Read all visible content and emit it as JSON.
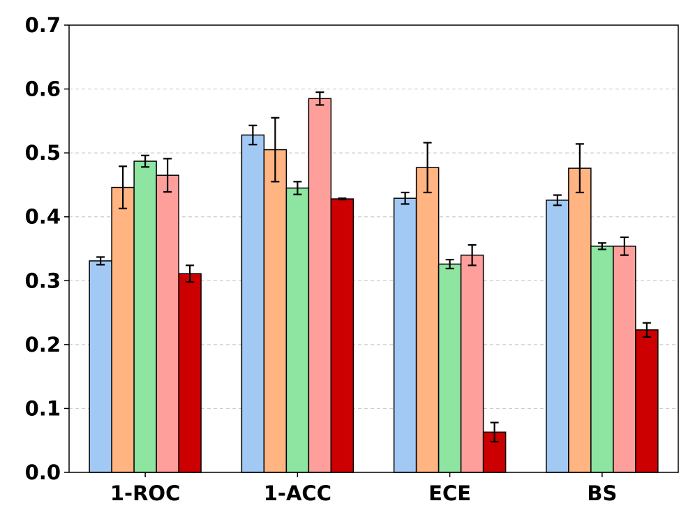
{
  "chart_data": {
    "type": "bar",
    "title": "",
    "xlabel": "",
    "ylabel": "",
    "categories": [
      "1-ROC",
      "1-ACC",
      "ECE",
      "BS"
    ],
    "ylim": [
      0.0,
      0.7
    ],
    "yticks": [
      0.0,
      0.1,
      0.2,
      0.3,
      0.4,
      0.5,
      0.6,
      0.7
    ],
    "ytick_labels": [
      "0.0",
      "0.1",
      "0.2",
      "0.3",
      "0.4",
      "0.5",
      "0.6",
      "0.7"
    ],
    "grid": "y-dashed",
    "legend": "none",
    "series": [
      {
        "name": "series-1",
        "color": "#a1c9f4",
        "values": [
          0.331,
          0.528,
          0.429,
          0.426
        ],
        "errors": [
          0.006,
          0.015,
          0.009,
          0.008
        ]
      },
      {
        "name": "series-2",
        "color": "#ffb482",
        "values": [
          0.446,
          0.505,
          0.477,
          0.476
        ],
        "errors": [
          0.033,
          0.05,
          0.039,
          0.038
        ]
      },
      {
        "name": "series-3",
        "color": "#8de5a1",
        "values": [
          0.487,
          0.445,
          0.326,
          0.354
        ],
        "errors": [
          0.009,
          0.01,
          0.007,
          0.005
        ]
      },
      {
        "name": "series-4",
        "color": "#ff9f9b",
        "values": [
          0.465,
          0.585,
          0.34,
          0.354
        ],
        "errors": [
          0.026,
          0.01,
          0.016,
          0.014
        ]
      },
      {
        "name": "series-5",
        "color": "#cc0000",
        "values": [
          0.311,
          0.428,
          0.063,
          0.223
        ],
        "errors": [
          0.013,
          0.001,
          0.015,
          0.011
        ]
      }
    ]
  }
}
